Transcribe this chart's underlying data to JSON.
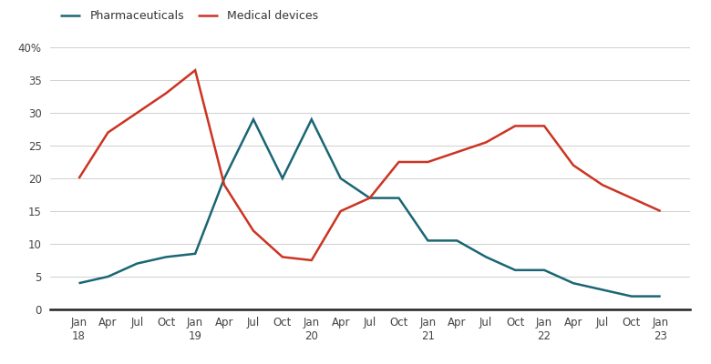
{
  "pharma": [
    4,
    5,
    7,
    8,
    8.5,
    20,
    29,
    20,
    29,
    20,
    17,
    17,
    10.5,
    10.5,
    8,
    6,
    6,
    4,
    3,
    2,
    2
  ],
  "medical": [
    20,
    27,
    30,
    33,
    36.5,
    19,
    12,
    8,
    7.5,
    15,
    17,
    22.5,
    22.5,
    24,
    25.5,
    28,
    28,
    22,
    19,
    17,
    15
  ],
  "x_labels": [
    "Jan\n18",
    "Apr",
    "Jul",
    "Oct",
    "Jan\n19",
    "Apr",
    "Jul",
    "Oct",
    "Jan\n20",
    "Apr",
    "Jul",
    "Oct",
    "Jan\n21",
    "Apr",
    "Jul",
    "Oct",
    "Jan\n22",
    "Apr",
    "Jul",
    "Oct",
    "Jan\n23"
  ],
  "pharma_color": "#1a6674",
  "medical_color": "#cc3322",
  "pharma_label": "Pharmaceuticals",
  "medical_label": "Medical devices",
  "ylim": [
    0,
    40
  ],
  "yticks": [
    0,
    5,
    10,
    15,
    20,
    25,
    30,
    35,
    40
  ],
  "background_color": "#ffffff",
  "grid_color": "#d0d0d0",
  "line_width": 1.8
}
